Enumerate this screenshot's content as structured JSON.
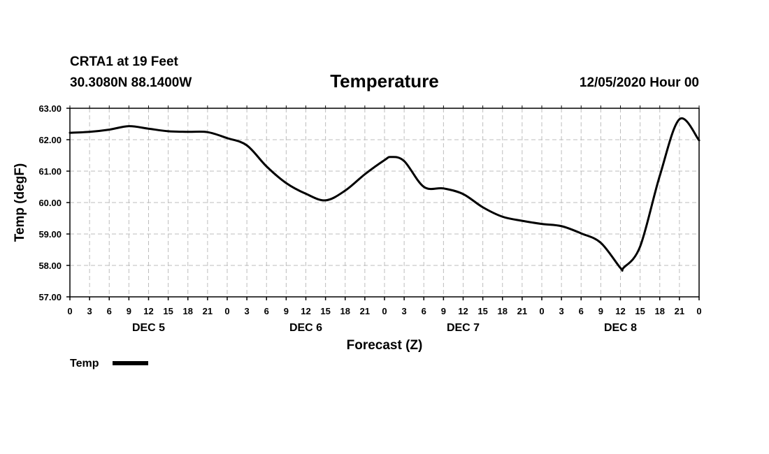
{
  "header": {
    "station": "CRTA1 at 19 Feet",
    "coordinates": "30.3080N 88.1400W",
    "title": "Temperature",
    "issued": "12/05/2020 Hour 00"
  },
  "chart_data": {
    "type": "line",
    "title": "Temperature",
    "xlabel": "Forecast (Z)",
    "ylabel": "Temp (degF)",
    "ylim": [
      57.0,
      63.0
    ],
    "y_ticks": [
      "57.00",
      "58.00",
      "59.00",
      "60.00",
      "61.00",
      "62.00",
      "63.00"
    ],
    "x_range_hours": [
      0,
      96
    ],
    "x_tick_labels": [
      "0",
      "3",
      "6",
      "9",
      "12",
      "15",
      "18",
      "21",
      "0",
      "3",
      "6",
      "9",
      "12",
      "15",
      "18",
      "21",
      "0",
      "3",
      "6",
      "9",
      "12",
      "15",
      "18",
      "21",
      "0",
      "3",
      "6",
      "9",
      "12",
      "15",
      "18",
      "21",
      "0"
    ],
    "day_labels": [
      {
        "label": "DEC 5",
        "hour": 12
      },
      {
        "label": "DEC 6",
        "hour": 36
      },
      {
        "label": "DEC 7",
        "hour": 60
      },
      {
        "label": "DEC 8",
        "hour": 84
      }
    ],
    "grid": true,
    "legend_position": "bottom-left",
    "series": [
      {
        "name": "Temp",
        "color": "#000000",
        "x": [
          0,
          3,
          6,
          9,
          12,
          15,
          18,
          21,
          24,
          27,
          30,
          33,
          36,
          39,
          42,
          45,
          48,
          49,
          51,
          54,
          57,
          60,
          63,
          66,
          69,
          72,
          75,
          78,
          81,
          84,
          84.5,
          87,
          90,
          93,
          96
        ],
        "y": [
          62.22,
          62.25,
          62.32,
          62.43,
          62.35,
          62.27,
          62.25,
          62.24,
          62.05,
          61.82,
          61.15,
          60.62,
          60.28,
          60.07,
          60.38,
          60.9,
          61.35,
          61.45,
          61.32,
          60.5,
          60.45,
          60.27,
          59.85,
          59.55,
          59.42,
          59.32,
          59.25,
          59.02,
          58.72,
          57.92,
          57.93,
          58.6,
          60.85,
          62.65,
          61.98
        ]
      }
    ]
  }
}
